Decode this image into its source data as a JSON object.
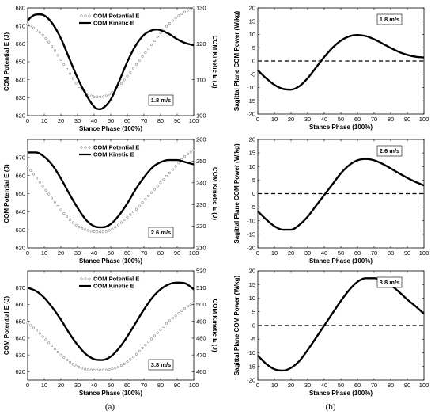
{
  "captions": [
    "(a)",
    "(b)"
  ],
  "chart_data": [
    {
      "type": "line",
      "panel": "a",
      "xlabel": "Stance Phase (100%)",
      "ylabel": "COM Potential E (J)",
      "ylabel_right": "COM Kinetic E (J)",
      "xlim": [
        0,
        100
      ],
      "xticks": [
        0,
        10,
        20,
        30,
        40,
        50,
        60,
        70,
        80,
        90,
        100
      ],
      "ylim": [
        620,
        680
      ],
      "yticks": [
        620,
        630,
        640,
        650,
        660,
        670,
        680
      ],
      "ylim_right": [
        100,
        130
      ],
      "yticks_right": [
        100,
        110,
        120,
        130
      ],
      "legend": [
        "COM Potential E",
        "COM Kinetic E"
      ],
      "legend_position": "top-center",
      "annotation": "1.8 m/s",
      "annotation_position": "bottom-right",
      "series": [
        {
          "name": "COM Potential E",
          "axis": "left",
          "style": "open-circle markers",
          "x": [
            0,
            5,
            10,
            15,
            20,
            25,
            30,
            35,
            40,
            45,
            50,
            55,
            60,
            65,
            70,
            75,
            80,
            85,
            90,
            95,
            100
          ],
          "values": [
            671,
            668,
            664,
            658,
            651,
            644,
            637,
            633,
            630.5,
            630.5,
            632.5,
            636.5,
            642,
            648,
            654,
            660,
            666,
            671,
            675,
            678,
            680
          ]
        },
        {
          "name": "COM Kinetic E",
          "axis": "right",
          "style": "thick solid line",
          "x": [
            0,
            3,
            6,
            9,
            12,
            15,
            20,
            25,
            30,
            35,
            40,
            43,
            45,
            50,
            55,
            60,
            65,
            70,
            75,
            78,
            80,
            85,
            90,
            95,
            100
          ],
          "values": [
            126.5,
            127.8,
            128.2,
            128.1,
            127.2,
            125.6,
            121.5,
            116,
            110.5,
            106,
            102.5,
            101.8,
            102,
            104.5,
            109.5,
            115,
            119.5,
            122.5,
            123.8,
            124,
            123.8,
            122.8,
            121.3,
            120.2,
            119.6
          ]
        }
      ]
    },
    {
      "type": "line",
      "panel": "b",
      "xlabel": "Stance Phase (100%)",
      "ylabel": "Sagittal Plane COM Power (W/kg)",
      "xlim": [
        0,
        100
      ],
      "xticks": [
        0,
        10,
        20,
        30,
        40,
        50,
        60,
        70,
        80,
        90,
        100
      ],
      "ylim": [
        -20,
        20
      ],
      "yticks": [
        -20,
        -15,
        -10,
        -5,
        0,
        5,
        10,
        15,
        20
      ],
      "annotation": "1.8 m/s",
      "annotation_position": "top-right",
      "reference_line": 0,
      "series": [
        {
          "style": "thick solid line",
          "x": [
            0,
            5,
            10,
            15,
            20,
            25,
            30,
            35,
            40,
            45,
            50,
            55,
            60,
            65,
            70,
            75,
            80,
            85,
            90,
            95,
            100
          ],
          "values": [
            -3.5,
            -6.5,
            -9,
            -10.5,
            -10.8,
            -9.5,
            -6.5,
            -2.5,
            1.5,
            5,
            7.7,
            9.3,
            9.8,
            9.4,
            8.2,
            6.6,
            4.9,
            3.4,
            2.3,
            1.6,
            1.3
          ]
        }
      ]
    },
    {
      "type": "line",
      "panel": "a",
      "xlabel": "Stance Phase (100%)",
      "ylabel": "COM Potential E (J)",
      "ylabel_right": "COM Kinetic E (J)",
      "xlim": [
        0,
        100
      ],
      "xticks": [
        0,
        10,
        20,
        30,
        40,
        50,
        60,
        70,
        80,
        90,
        100
      ],
      "ylim": [
        620,
        680
      ],
      "yticks": [
        620,
        630,
        640,
        650,
        660,
        670
      ],
      "ylim_right": [
        210,
        260
      ],
      "yticks_right": [
        210,
        220,
        230,
        240,
        250,
        260
      ],
      "legend": [
        "COM Potential E",
        "COM Kinetic E"
      ],
      "legend_position": "top-center",
      "annotation": "2.6 m/s",
      "annotation_position": "bottom-right",
      "series": [
        {
          "name": "COM Potential E",
          "axis": "left",
          "style": "open-circle markers",
          "x": [
            0,
            5,
            10,
            15,
            20,
            25,
            30,
            35,
            40,
            45,
            50,
            55,
            60,
            65,
            70,
            75,
            80,
            85,
            90,
            95,
            100
          ],
          "values": [
            665,
            659,
            653,
            647,
            641,
            636,
            632,
            630,
            629,
            628.8,
            630,
            633,
            637,
            641,
            646,
            651,
            656,
            661,
            666,
            671,
            674
          ]
        },
        {
          "name": "COM Kinetic E",
          "axis": "right",
          "style": "thick solid line",
          "x": [
            0,
            5,
            10,
            15,
            20,
            25,
            30,
            35,
            40,
            45,
            50,
            55,
            60,
            65,
            70,
            75,
            80,
            85,
            90,
            95,
            100
          ],
          "values": [
            254,
            254,
            252,
            248,
            242,
            235,
            228.5,
            223,
            220,
            219.5,
            221,
            225,
            230.5,
            237,
            242.5,
            247,
            249.5,
            250.5,
            250.5,
            249.5,
            248.5
          ]
        }
      ]
    },
    {
      "type": "line",
      "panel": "b",
      "xlabel": "Stance Phase (100%)",
      "ylabel": "Sagittal Plane COM Power (W/kg)",
      "xlim": [
        0,
        100
      ],
      "xticks": [
        0,
        10,
        20,
        30,
        40,
        50,
        60,
        70,
        80,
        90,
        100
      ],
      "ylim": [
        -20,
        20
      ],
      "yticks": [
        -20,
        -15,
        -10,
        -5,
        0,
        5,
        10,
        15,
        20
      ],
      "annotation": "2.6 m/s",
      "annotation_position": "top-right",
      "reference_line": 0,
      "series": [
        {
          "style": "thick solid line",
          "x": [
            0,
            5,
            10,
            15,
            20,
            25,
            30,
            35,
            40,
            45,
            50,
            55,
            60,
            65,
            70,
            75,
            80,
            85,
            90,
            95,
            100
          ],
          "values": [
            -6.5,
            -9.5,
            -12,
            -13.3,
            -13.3,
            -11.5,
            -8.5,
            -4.5,
            -0.5,
            3.5,
            7.5,
            10.5,
            12.3,
            12.8,
            12.3,
            11,
            9.3,
            7.5,
            5.8,
            4.3,
            3
          ]
        }
      ]
    },
    {
      "type": "line",
      "panel": "a",
      "xlabel": "Stance Phase (100%)",
      "ylabel": "COM Potential E (J)",
      "ylabel_right": "COM Kinetic E (J)",
      "xlim": [
        0,
        100
      ],
      "xticks": [
        0,
        10,
        20,
        30,
        40,
        50,
        60,
        70,
        80,
        90,
        100
      ],
      "ylim": [
        615,
        680
      ],
      "yticks": [
        620,
        630,
        640,
        650,
        660,
        670
      ],
      "ylim_right": [
        455,
        520
      ],
      "yticks_right": [
        460,
        470,
        480,
        490,
        500,
        510,
        520
      ],
      "legend": [
        "COM Potential E",
        "COM Kinetic E"
      ],
      "legend_position": "top-center",
      "annotation": "3.8 m/s",
      "annotation_position": "bottom-right",
      "series": [
        {
          "name": "COM Potential E",
          "axis": "left",
          "style": "open-circle markers",
          "x": [
            0,
            5,
            10,
            15,
            20,
            25,
            30,
            35,
            40,
            45,
            50,
            55,
            60,
            65,
            70,
            75,
            80,
            85,
            90,
            95,
            100
          ],
          "values": [
            649,
            645,
            640,
            635,
            630,
            626,
            623,
            621.5,
            621,
            621,
            621.5,
            623,
            626,
            630,
            635,
            640,
            645,
            650,
            654,
            658,
            661
          ]
        },
        {
          "name": "COM Kinetic E",
          "axis": "right",
          "style": "thick solid line",
          "x": [
            0,
            5,
            10,
            15,
            20,
            25,
            30,
            35,
            40,
            45,
            50,
            55,
            60,
            65,
            70,
            75,
            80,
            85,
            90,
            95,
            100
          ],
          "values": [
            510,
            508,
            504,
            498,
            491,
            483,
            476,
            470.5,
            467.5,
            467,
            469,
            474,
            481,
            489,
            497,
            504,
            509,
            512,
            513,
            512.5,
            509
          ]
        }
      ]
    },
    {
      "type": "line",
      "panel": "b",
      "xlabel": "Stance Phase (100%)",
      "ylabel": "Sagittal Plane COM Power (W/kg)",
      "xlim": [
        0,
        100
      ],
      "xticks": [
        0,
        10,
        20,
        30,
        40,
        50,
        60,
        70,
        80,
        90,
        100
      ],
      "ylim": [
        -20,
        20
      ],
      "yticks": [
        -20,
        -15,
        -10,
        -5,
        0,
        5,
        10,
        15,
        20
      ],
      "annotation": "3.8 m/s",
      "annotation_position": "top-right",
      "reference_line": 0,
      "series": [
        {
          "style": "thick solid line",
          "x": [
            0,
            5,
            10,
            15,
            20,
            25,
            30,
            35,
            40,
            45,
            50,
            55,
            60,
            65,
            70,
            75,
            80,
            85,
            90,
            95,
            100
          ],
          "values": [
            -11,
            -14,
            -16,
            -16.5,
            -15.5,
            -13,
            -9,
            -4.5,
            0,
            4.5,
            9,
            13,
            16,
            17.3,
            17.3,
            16.5,
            14.8,
            12.3,
            9.5,
            7,
            4.3
          ]
        }
      ]
    }
  ]
}
